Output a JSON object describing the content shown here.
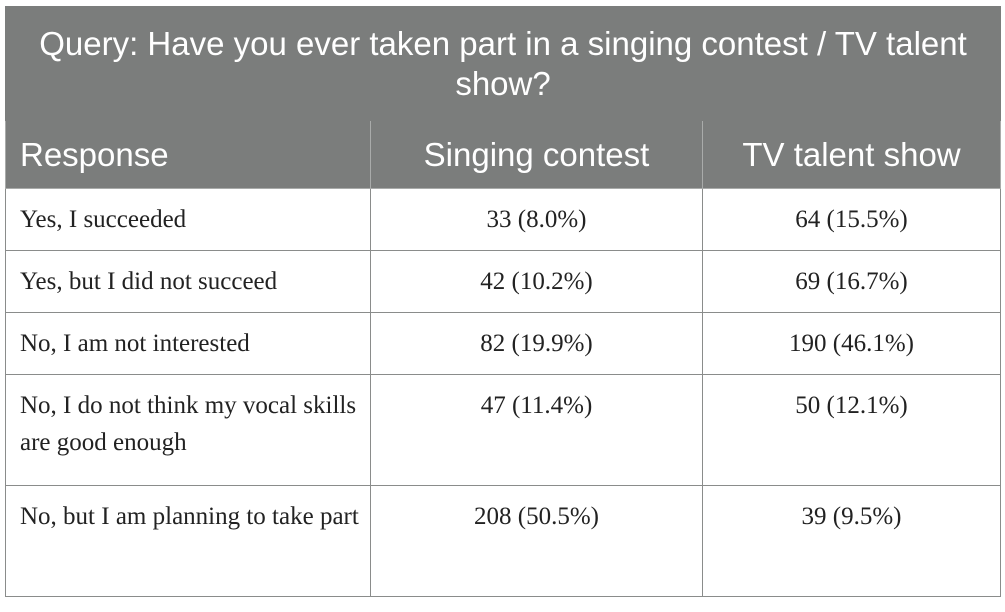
{
  "table": {
    "caption": "Query: Have you ever taken part in a singing contest / TV talent show?",
    "headers": [
      "Response",
      "Singing contest",
      "TV talent show"
    ],
    "rows": [
      {
        "response": "Yes, I succeeded",
        "singing": "33 (8.0%)",
        "tv": "64 (15.5%)"
      },
      {
        "response": "Yes, but I did not succeed",
        "singing": "42 (10.2%)",
        "tv": "69 (16.7%)"
      },
      {
        "response": "No, I am not interested",
        "singing": "82 (19.9%)",
        "tv": "190 (46.1%)"
      },
      {
        "response": "No, I do not think my vocal skills are good enough",
        "singing": "47 (11.4%)",
        "tv": "50 (12.1%)"
      },
      {
        "response": "No, but I am planning to take part",
        "singing": "208 (50.5%)",
        "tv": "39 (9.5%)"
      }
    ]
  },
  "colors": {
    "header_background": "#7b7d7c",
    "header_text": "#ffffff",
    "body_text": "#222222",
    "border": "#8a8c8b"
  }
}
